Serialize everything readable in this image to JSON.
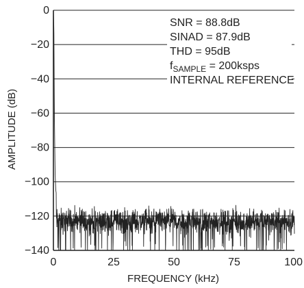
{
  "chart_data": {
    "type": "line",
    "xlabel": "FREQUENCY (kHz)",
    "ylabel": "AMPLITUDE (dB)",
    "xlim": [
      0,
      100
    ],
    "ylim": [
      -140,
      0
    ],
    "x_ticks": [
      "0",
      "25",
      "50",
      "75",
      "100"
    ],
    "y_ticks": [
      "0",
      "−20",
      "−40",
      "−60",
      "−80",
      "−100",
      "−120",
      "−140"
    ],
    "grid": "horizontal",
    "line_color": "#222222",
    "annotations": {
      "snr": "SNR = 88.8dB",
      "sinad": "SINAD = 87.9dB",
      "thd": "THD = 95dB",
      "fs_main": "f",
      "fs_sub": "SAMPLE",
      "fs_rest": " = 200ksps",
      "ref": "INTERNAL REFERENCE"
    },
    "series": [
      {
        "x": [
          0,
          0.2,
          0.4,
          0.7,
          1.0,
          1.3,
          1.6,
          2.0,
          2.5,
          3,
          5,
          10,
          20,
          30,
          40,
          50,
          60,
          70,
          80,
          90,
          100
        ],
        "values": [
          0,
          -10,
          -60,
          -95,
          -105,
          -108,
          -100,
          -112,
          -115,
          -118,
          -121,
          -123,
          -123,
          -123,
          -123,
          -123,
          -123,
          -123,
          -123,
          -123,
          -123
        ]
      }
    ],
    "noise_floor": {
      "mean": -123,
      "min": -140,
      "max": -110
    }
  }
}
